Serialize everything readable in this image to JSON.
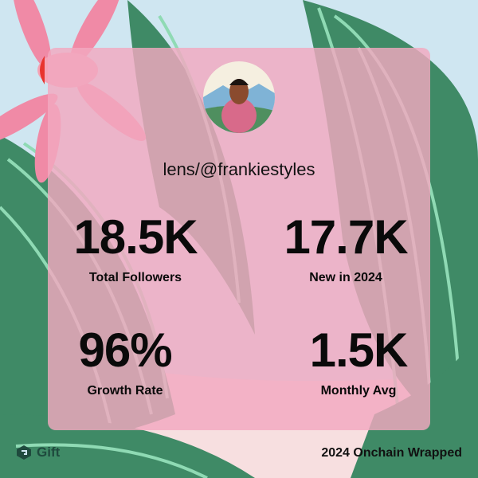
{
  "profile": {
    "handle": "lens/@frankiestyles"
  },
  "stats": [
    {
      "value": "18.5K",
      "label": "Total Followers"
    },
    {
      "value": "17.7K",
      "label": "New in 2024"
    },
    {
      "value": "96%",
      "label": "Growth Rate"
    },
    {
      "value": "1.5K",
      "label": "Monthly Avg"
    }
  ],
  "footer": {
    "brand": "Gift",
    "caption": "2024 Onchain Wrapped"
  }
}
